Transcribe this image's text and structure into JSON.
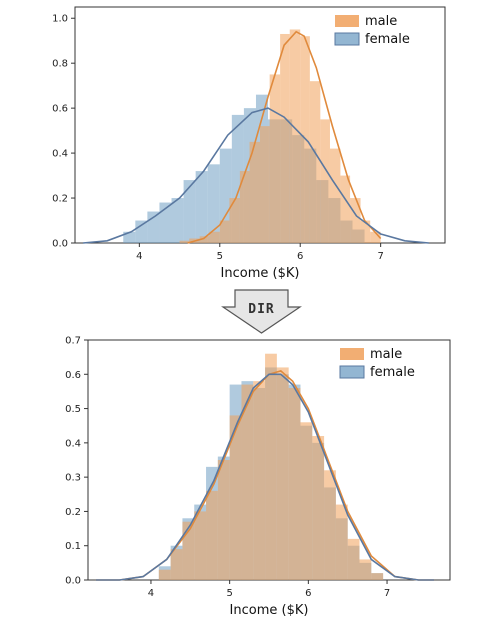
{
  "colors": {
    "male": "#f0a05a",
    "female": "#6f9ec3",
    "male_line": "#e08a3c",
    "female_line": "#5a78a0"
  },
  "arrow": {
    "label": "DIR"
  },
  "chart_data": [
    {
      "type": "histogram",
      "xlabel": "Income ($K)",
      "xlim": [
        3.2,
        7.8
      ],
      "ylim": [
        0,
        1.05
      ],
      "xticks": [
        4,
        5,
        6,
        7
      ],
      "yticks": [
        0.0,
        0.2,
        0.4,
        0.6,
        0.8,
        1.0
      ],
      "legend": "top-right",
      "series": [
        {
          "name": "male",
          "bins": [
            [
              4.5,
              4.62,
              0.01
            ],
            [
              4.62,
              4.75,
              0.02
            ],
            [
              4.75,
              4.87,
              0.03
            ],
            [
              4.87,
              5.0,
              0.05
            ],
            [
              5.0,
              5.12,
              0.1
            ],
            [
              5.12,
              5.25,
              0.2
            ],
            [
              5.25,
              5.37,
              0.32
            ],
            [
              5.37,
              5.5,
              0.45
            ],
            [
              5.5,
              5.62,
              0.52
            ],
            [
              5.62,
              5.75,
              0.75
            ],
            [
              5.75,
              5.87,
              0.93
            ],
            [
              5.87,
              6.0,
              0.95
            ],
            [
              6.0,
              6.12,
              0.92
            ],
            [
              6.12,
              6.25,
              0.72
            ],
            [
              6.25,
              6.37,
              0.55
            ],
            [
              6.37,
              6.5,
              0.42
            ],
            [
              6.5,
              6.62,
              0.3
            ],
            [
              6.62,
              6.75,
              0.2
            ],
            [
              6.75,
              6.87,
              0.1
            ],
            [
              6.87,
              7.0,
              0.05
            ]
          ],
          "kde_x": [
            4.6,
            4.8,
            5.0,
            5.2,
            5.4,
            5.6,
            5.8,
            5.95,
            6.05,
            6.2,
            6.4,
            6.6,
            6.8,
            7.0
          ],
          "kde_y": [
            0.0,
            0.02,
            0.08,
            0.2,
            0.4,
            0.65,
            0.88,
            0.94,
            0.92,
            0.78,
            0.52,
            0.28,
            0.1,
            0.02
          ]
        },
        {
          "name": "female",
          "bins": [
            [
              3.8,
              3.95,
              0.05
            ],
            [
              3.95,
              4.1,
              0.1
            ],
            [
              4.1,
              4.25,
              0.14
            ],
            [
              4.25,
              4.4,
              0.18
            ],
            [
              4.4,
              4.55,
              0.2
            ],
            [
              4.55,
              4.7,
              0.28
            ],
            [
              4.7,
              4.85,
              0.32
            ],
            [
              4.85,
              5.0,
              0.35
            ],
            [
              5.0,
              5.15,
              0.42
            ],
            [
              5.15,
              5.3,
              0.57
            ],
            [
              5.3,
              5.45,
              0.6
            ],
            [
              5.45,
              5.6,
              0.66
            ],
            [
              5.6,
              5.75,
              0.55
            ],
            [
              5.75,
              5.9,
              0.55
            ],
            [
              5.9,
              6.05,
              0.48
            ],
            [
              6.05,
              6.2,
              0.42
            ],
            [
              6.2,
              6.35,
              0.28
            ],
            [
              6.35,
              6.5,
              0.2
            ],
            [
              6.5,
              6.65,
              0.1
            ],
            [
              6.65,
              6.8,
              0.06
            ]
          ],
          "kde_x": [
            3.3,
            3.6,
            3.9,
            4.2,
            4.5,
            4.8,
            5.1,
            5.4,
            5.6,
            5.8,
            6.1,
            6.4,
            6.7,
            7.0,
            7.3,
            7.6
          ],
          "kde_y": [
            0.0,
            0.01,
            0.05,
            0.12,
            0.2,
            0.32,
            0.48,
            0.58,
            0.6,
            0.56,
            0.45,
            0.28,
            0.12,
            0.04,
            0.01,
            0.0
          ]
        }
      ]
    },
    {
      "type": "histogram",
      "xlabel": "Income ($K)",
      "xlim": [
        3.2,
        7.8
      ],
      "ylim": [
        0,
        0.7
      ],
      "xticks": [
        4,
        5,
        6,
        7
      ],
      "yticks": [
        0.0,
        0.1,
        0.2,
        0.3,
        0.4,
        0.5,
        0.6,
        0.7
      ],
      "legend": "top-right",
      "series": [
        {
          "name": "male",
          "bins": [
            [
              4.1,
              4.25,
              0.03
            ],
            [
              4.25,
              4.4,
              0.09
            ],
            [
              4.4,
              4.55,
              0.17
            ],
            [
              4.55,
              4.7,
              0.2
            ],
            [
              4.7,
              4.85,
              0.26
            ],
            [
              4.85,
              5.0,
              0.35
            ],
            [
              5.0,
              5.15,
              0.48
            ],
            [
              5.15,
              5.3,
              0.57
            ],
            [
              5.3,
              5.45,
              0.58
            ],
            [
              5.45,
              5.6,
              0.66
            ],
            [
              5.6,
              5.75,
              0.62
            ],
            [
              5.75,
              5.9,
              0.56
            ],
            [
              5.9,
              6.05,
              0.46
            ],
            [
              6.05,
              6.2,
              0.42
            ],
            [
              6.2,
              6.35,
              0.32
            ],
            [
              6.35,
              6.5,
              0.22
            ],
            [
              6.5,
              6.65,
              0.12
            ],
            [
              6.65,
              6.8,
              0.06
            ],
            [
              6.8,
              6.95,
              0.02
            ]
          ],
          "kde_x": [
            3.3,
            3.6,
            3.9,
            4.2,
            4.5,
            4.8,
            5.1,
            5.3,
            5.5,
            5.65,
            5.8,
            6.0,
            6.2,
            6.5,
            6.8,
            7.1,
            7.4,
            7.6
          ],
          "kde_y": [
            0.0,
            0.0,
            0.01,
            0.06,
            0.15,
            0.28,
            0.45,
            0.55,
            0.6,
            0.61,
            0.58,
            0.5,
            0.38,
            0.2,
            0.07,
            0.01,
            0.0,
            0.0
          ]
        },
        {
          "name": "female",
          "bins": [
            [
              4.1,
              4.25,
              0.04
            ],
            [
              4.25,
              4.4,
              0.1
            ],
            [
              4.4,
              4.55,
              0.18
            ],
            [
              4.55,
              4.7,
              0.22
            ],
            [
              4.7,
              4.85,
              0.33
            ],
            [
              4.85,
              5.0,
              0.36
            ],
            [
              5.0,
              5.15,
              0.57
            ],
            [
              5.15,
              5.3,
              0.58
            ],
            [
              5.3,
              5.45,
              0.56
            ],
            [
              5.45,
              5.6,
              0.62
            ],
            [
              5.6,
              5.75,
              0.6
            ],
            [
              5.75,
              5.9,
              0.57
            ],
            [
              5.9,
              6.05,
              0.45
            ],
            [
              6.05,
              6.2,
              0.4
            ],
            [
              6.2,
              6.35,
              0.27
            ],
            [
              6.35,
              6.5,
              0.18
            ],
            [
              6.5,
              6.65,
              0.1
            ],
            [
              6.65,
              6.8,
              0.05
            ],
            [
              6.8,
              6.95,
              0.02
            ]
          ],
          "kde_x": [
            3.3,
            3.6,
            3.9,
            4.2,
            4.5,
            4.8,
            5.1,
            5.3,
            5.5,
            5.65,
            5.8,
            6.0,
            6.2,
            6.5,
            6.8,
            7.1,
            7.4,
            7.6
          ],
          "kde_y": [
            0.0,
            0.0,
            0.01,
            0.06,
            0.16,
            0.29,
            0.46,
            0.56,
            0.6,
            0.6,
            0.57,
            0.49,
            0.37,
            0.19,
            0.06,
            0.01,
            0.0,
            0.0
          ]
        }
      ]
    }
  ]
}
